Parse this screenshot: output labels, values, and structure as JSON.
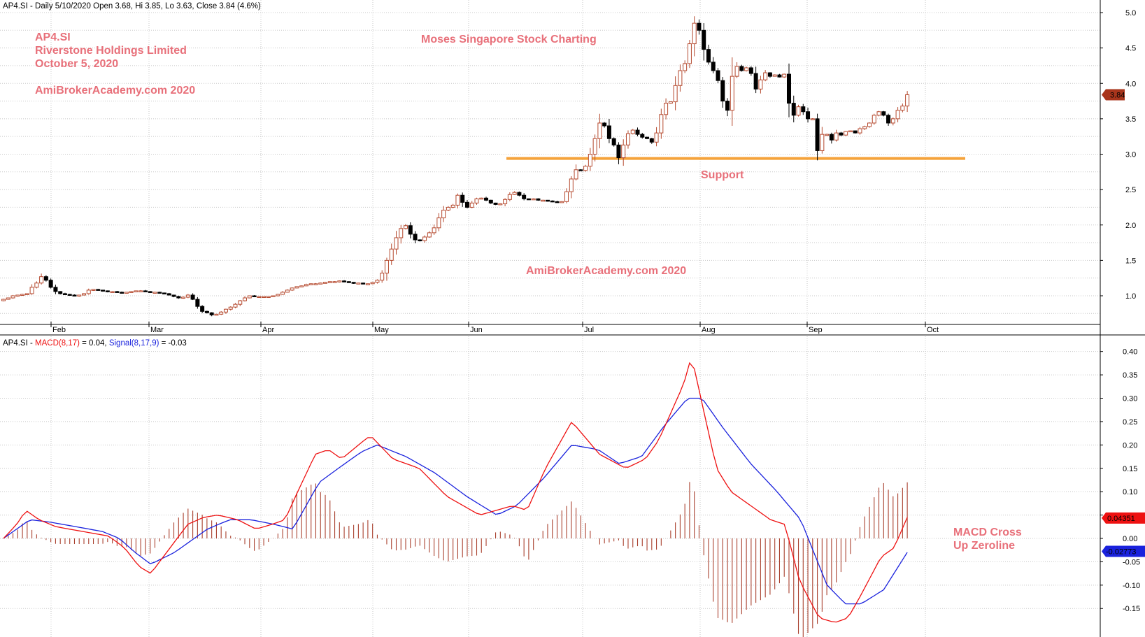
{
  "price_header": "AP4.SI - Daily 5/10/2020 Open 3.68, Hi 3.85, Lo 3.63, Close 3.84 (4.6%)",
  "macd_header": {
    "prefix": "AP4.SI - ",
    "macd_label": "MACD(8,17)",
    "macd_value": " = 0.04, ",
    "signal_label": "Signal(8,17,9)",
    "signal_value": " = -0.03"
  },
  "annotations": {
    "ticker": "AP4.SI",
    "company": "Riverstone Holdings Limited",
    "date": "October 5, 2020",
    "site1": "AmiBrokerAcademy.com  2020",
    "brand": "Moses Singapore Stock Charting",
    "support": "Support",
    "site2": "AmiBrokerAcademy.com 2020",
    "macd_note_1": "MACD Cross",
    "macd_note_2": "Up Zeroline"
  },
  "colors": {
    "up_candle": "#b5492e",
    "down_candle": "#000000",
    "support": "#f5a33b",
    "macd": "#ee1111",
    "signal": "#1a22dd",
    "histogram": "#a9402e",
    "annotation": "#e8707a",
    "price_badge": "#a8351c",
    "macd_badge": "#ee1111",
    "signal_badge": "#1a22dd"
  },
  "chart_data": [
    {
      "type": "candlestick",
      "series": "AP4.SI",
      "x_tick_labels": [
        "Feb",
        "Mar",
        "Apr",
        "May",
        "Jun",
        "Jul",
        "Aug",
        "Sep",
        "Oct"
      ],
      "y_tick_labels": [
        "1.0",
        "1.5",
        "2.0",
        "2.5",
        "3.0",
        "3.5",
        "4.0",
        "4.5",
        "5.0"
      ],
      "ylim": [
        0.6,
        5.1
      ],
      "grid": true,
      "last_close": "3.84",
      "support_level": 2.94,
      "closes": [
        0.95,
        0.97,
        1.0,
        1.01,
        1.02,
        1.03,
        1.12,
        1.18,
        1.27,
        1.22,
        1.12,
        1.06,
        1.03,
        1.02,
        1.01,
        1.0,
        1.01,
        1.03,
        1.08,
        1.09,
        1.08,
        1.07,
        1.06,
        1.06,
        1.05,
        1.04,
        1.05,
        1.06,
        1.07,
        1.07,
        1.06,
        1.05,
        1.05,
        1.04,
        1.03,
        1.01,
        0.99,
        0.97,
        0.98,
        1.01,
        0.95,
        0.85,
        0.78,
        0.76,
        0.73,
        0.74,
        0.77,
        0.81,
        0.84,
        0.88,
        0.93,
        0.97,
        1.0,
        0.99,
        0.99,
        0.99,
        0.99,
        1.0,
        1.02,
        1.05,
        1.08,
        1.11,
        1.13,
        1.14,
        1.16,
        1.17,
        1.17,
        1.18,
        1.19,
        1.2,
        1.2,
        1.21,
        1.2,
        1.19,
        1.18,
        1.18,
        1.17,
        1.17,
        1.19,
        1.22,
        1.32,
        1.5,
        1.66,
        1.82,
        1.95,
        1.99,
        1.87,
        1.79,
        1.78,
        1.83,
        1.89,
        1.96,
        2.1,
        2.21,
        2.25,
        2.28,
        2.42,
        2.32,
        2.25,
        2.31,
        2.37,
        2.38,
        2.35,
        2.31,
        2.29,
        2.3,
        2.36,
        2.43,
        2.46,
        2.42,
        2.37,
        2.36,
        2.37,
        2.35,
        2.35,
        2.34,
        2.33,
        2.32,
        2.33,
        2.47,
        2.65,
        2.78,
        2.77,
        2.83,
        3.0,
        3.22,
        3.44,
        3.4,
        3.22,
        3.13,
        2.95,
        3.13,
        3.29,
        3.34,
        3.28,
        3.24,
        3.22,
        3.17,
        3.3,
        3.56,
        3.72,
        3.74,
        3.97,
        4.18,
        4.28,
        4.56,
        4.85,
        4.75,
        4.48,
        4.3,
        4.18,
        4.04,
        3.75,
        3.62,
        4.1,
        4.24,
        4.18,
        4.22,
        4.14,
        3.92,
        4.05,
        4.15,
        4.1,
        4.12,
        4.09,
        4.13,
        3.72,
        3.55,
        3.67,
        3.6,
        3.5,
        3.5,
        3.05,
        3.28,
        3.28,
        3.2,
        3.3,
        3.27,
        3.32,
        3.33,
        3.3,
        3.36,
        3.39,
        3.44,
        3.55,
        3.6,
        3.55,
        3.44,
        3.5,
        3.62,
        3.68,
        3.84
      ]
    },
    {
      "type": "line",
      "series": [
        "MACD(8,17)",
        "Signal(8,17,9)"
      ],
      "y_tick_labels": [
        "-0.15",
        "-0.10",
        "-0.05",
        "0.00",
        "0.05",
        "0.10",
        "0.15",
        "0.20",
        "0.25",
        "0.30",
        "0.35",
        "0.40"
      ],
      "ylim": [
        -0.205,
        0.405
      ],
      "grid": true,
      "last_macd": "0.04351",
      "last_signal": "-0.02773",
      "macd_keypoints": [
        [
          0,
          0.0
        ],
        [
          10,
          0.03
        ],
        [
          17,
          0.06
        ],
        [
          27,
          0.04
        ],
        [
          40,
          0.025
        ],
        [
          60,
          0.015
        ],
        [
          80,
          0.005
        ],
        [
          92,
          -0.02
        ],
        [
          103,
          -0.06
        ],
        [
          112,
          -0.075
        ],
        [
          124,
          -0.03
        ],
        [
          140,
          0.03
        ],
        [
          152,
          0.045
        ],
        [
          163,
          0.05
        ],
        [
          178,
          0.04
        ],
        [
          192,
          0.02
        ],
        [
          204,
          0.03
        ],
        [
          214,
          0.04
        ],
        [
          222,
          0.09
        ],
        [
          237,
          0.18
        ],
        [
          247,
          0.19
        ],
        [
          257,
          0.17
        ],
        [
          272,
          0.205
        ],
        [
          279,
          0.22
        ],
        [
          296,
          0.17
        ],
        [
          316,
          0.15
        ],
        [
          337,
          0.09
        ],
        [
          362,
          0.05
        ],
        [
          387,
          0.07
        ],
        [
          398,
          0.06
        ],
        [
          412,
          0.15
        ],
        [
          432,
          0.25
        ],
        [
          453,
          0.18
        ],
        [
          473,
          0.15
        ],
        [
          488,
          0.17
        ],
        [
          498,
          0.21
        ],
        [
          517,
          0.33
        ],
        [
          523,
          0.39
        ],
        [
          542,
          0.15
        ],
        [
          553,
          0.1
        ],
        [
          568,
          0.07
        ],
        [
          583,
          0.04
        ],
        [
          594,
          0.03
        ],
        [
          605,
          -0.09
        ],
        [
          620,
          -0.17
        ],
        [
          632,
          -0.18
        ],
        [
          642,
          -0.17
        ],
        [
          652,
          -0.12
        ],
        [
          667,
          -0.04
        ],
        [
          677,
          -0.02
        ],
        [
          687,
          0.045
        ]
      ],
      "signal_keypoints": [
        [
          0,
          0.0
        ],
        [
          10,
          0.02
        ],
        [
          20,
          0.04
        ],
        [
          35,
          0.035
        ],
        [
          55,
          0.025
        ],
        [
          75,
          0.015
        ],
        [
          88,
          0.0
        ],
        [
          100,
          -0.03
        ],
        [
          112,
          -0.055
        ],
        [
          130,
          -0.03
        ],
        [
          155,
          0.02
        ],
        [
          172,
          0.04
        ],
        [
          188,
          0.04
        ],
        [
          206,
          0.03
        ],
        [
          220,
          0.02
        ],
        [
          240,
          0.12
        ],
        [
          257,
          0.155
        ],
        [
          272,
          0.185
        ],
        [
          284,
          0.2
        ],
        [
          306,
          0.175
        ],
        [
          328,
          0.14
        ],
        [
          352,
          0.09
        ],
        [
          375,
          0.05
        ],
        [
          390,
          0.07
        ],
        [
          411,
          0.13
        ],
        [
          432,
          0.2
        ],
        [
          452,
          0.19
        ],
        [
          468,
          0.16
        ],
        [
          485,
          0.175
        ],
        [
          502,
          0.24
        ],
        [
          520,
          0.3
        ],
        [
          531,
          0.3
        ],
        [
          546,
          0.24
        ],
        [
          568,
          0.16
        ],
        [
          588,
          0.1
        ],
        [
          606,
          0.04
        ],
        [
          616,
          -0.03
        ],
        [
          626,
          -0.1
        ],
        [
          640,
          -0.14
        ],
        [
          652,
          -0.14
        ],
        [
          669,
          -0.11
        ],
        [
          687,
          -0.03
        ]
      ]
    }
  ]
}
